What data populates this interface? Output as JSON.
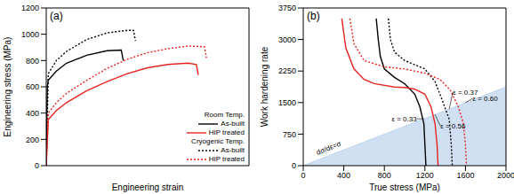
{
  "chart_data": [
    {
      "type": "line",
      "title": "(a)",
      "x_label": "Engineering strain",
      "y_label": "Engineering stress (MPa)",
      "xlim": [
        0,
        1
      ],
      "ylim": [
        0,
        1200
      ],
      "yticks": [
        0,
        200,
        400,
        600,
        800,
        1000,
        1200
      ],
      "tick_labels": "y",
      "legend": "lower right",
      "series": [
        {
          "name": "As-built",
          "group": "Room Temp.",
          "color": "#000000",
          "line_style": "solid",
          "x": [
            0,
            0.005,
            0.01,
            0.05,
            0.1,
            0.2,
            0.3,
            0.37,
            0.38
          ],
          "values": [
            0,
            600,
            650,
            720,
            780,
            840,
            875,
            880,
            800
          ]
        },
        {
          "name": "HIP treated",
          "group": "Room Temp.",
          "color": "#e8231f",
          "line_style": "solid",
          "x": [
            0,
            0.01,
            0.05,
            0.1,
            0.2,
            0.3,
            0.4,
            0.5,
            0.6,
            0.7,
            0.74,
            0.75
          ],
          "values": [
            0,
            350,
            420,
            480,
            570,
            640,
            700,
            745,
            770,
            780,
            770,
            690
          ]
        },
        {
          "name": "As-built",
          "group": "Cryogenic Temp.",
          "color": "#000000",
          "line_style": "dotted",
          "x": [
            0,
            0.01,
            0.05,
            0.1,
            0.2,
            0.3,
            0.4,
            0.43,
            0.44
          ],
          "values": [
            0,
            700,
            800,
            870,
            960,
            1010,
            1030,
            1030,
            950
          ]
        },
        {
          "name": "HIP treated",
          "group": "Cryogenic Temp.",
          "color": "#e8231f",
          "line_style": "dotted",
          "x": [
            0,
            0.01,
            0.05,
            0.1,
            0.2,
            0.3,
            0.4,
            0.5,
            0.6,
            0.7,
            0.78,
            0.79
          ],
          "values": [
            0,
            400,
            480,
            550,
            650,
            740,
            810,
            860,
            890,
            910,
            905,
            820
          ]
        }
      ]
    },
    {
      "type": "line",
      "title": "(b)",
      "x_label": "True stress (MPa)",
      "y_label": "Work hardening rate",
      "xlim": [
        0,
        2000
      ],
      "xticks": [
        0,
        400,
        800,
        1200,
        1600,
        2000
      ],
      "ylim": [
        0,
        3750
      ],
      "yticks": [
        0,
        750,
        1500,
        2250,
        3000,
        3750
      ],
      "series": [
        {
          "name": "dσ/dε=σ",
          "type": "area",
          "color": "#bcd3ec",
          "x": [
            0,
            2000
          ],
          "values": [
            0,
            1870
          ]
        },
        {
          "color": "#000000",
          "line_style": "solid",
          "x": [
            720,
            740,
            760,
            800,
            900,
            1000,
            1100,
            1150,
            1190,
            1200,
            1210
          ],
          "values": [
            3500,
            3000,
            2600,
            2300,
            2100,
            1950,
            1700,
            1400,
            1000,
            500,
            0
          ]
        },
        {
          "color": "#e8231f",
          "line_style": "solid",
          "x": [
            380,
            420,
            500,
            600,
            700,
            900,
            1000,
            1100,
            1200,
            1260,
            1300,
            1320,
            1330
          ],
          "values": [
            3500,
            2800,
            2300,
            2050,
            1950,
            1870,
            1860,
            1820,
            1700,
            1400,
            1000,
            500,
            0
          ]
        },
        {
          "color": "#000000",
          "line_style": "dotted",
          "x": [
            840,
            860,
            900,
            1000,
            1100,
            1200,
            1300,
            1380,
            1440,
            1460,
            1470
          ],
          "values": [
            3500,
            3000,
            2700,
            2500,
            2400,
            2300,
            2000,
            1500,
            1100,
            500,
            0
          ]
        },
        {
          "color": "#e8231f",
          "line_style": "dotted",
          "x": [
            460,
            500,
            600,
            800,
            1000,
            1200,
            1350,
            1450,
            1530,
            1580,
            1600,
            1610
          ],
          "values": [
            3500,
            2900,
            2500,
            2350,
            2300,
            2200,
            2050,
            1800,
            1400,
            1000,
            500,
            0
          ]
        }
      ],
      "annotations": [
        {
          "text": "ε = 0.33",
          "x": 1190,
          "y": 1113
        },
        {
          "text": "ε = 0.56",
          "x": 1300,
          "y": 1215
        },
        {
          "text": "ε = 0.37",
          "x": 1440,
          "y": 1346
        },
        {
          "text": "ε = 0.60",
          "x": 1600,
          "y": 1496
        }
      ]
    }
  ]
}
